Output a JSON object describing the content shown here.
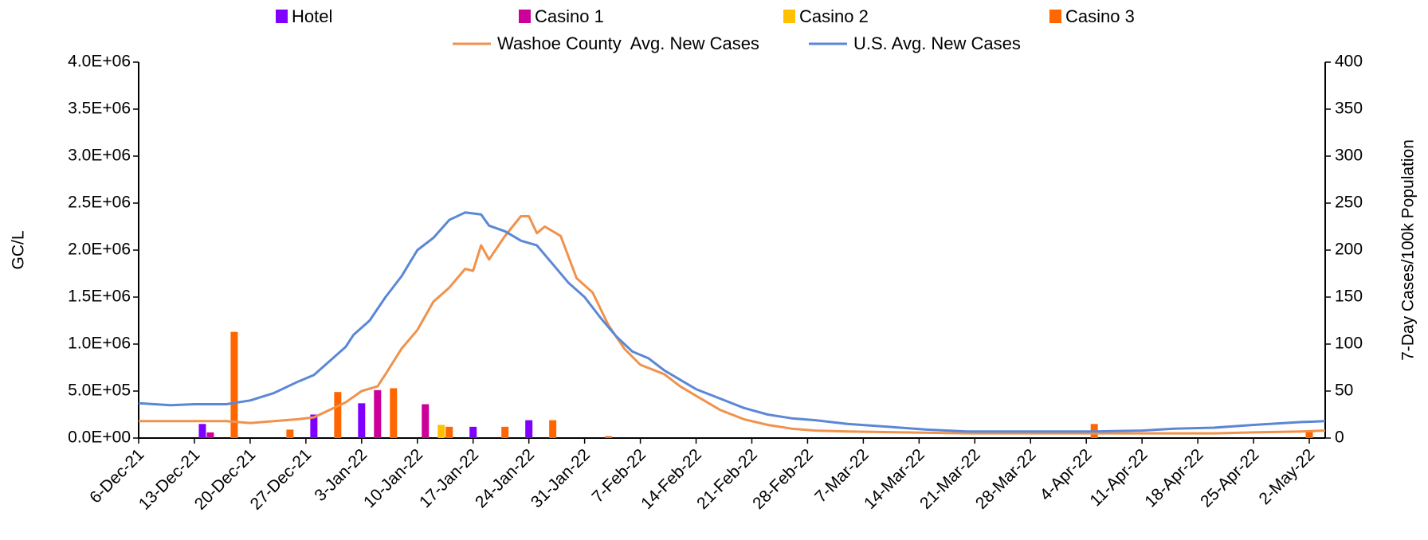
{
  "chart_data": {
    "type": "bar",
    "ylabel": "GC/L",
    "y2label": "7-Day Cases/100k Population",
    "xlim": [
      "2021-12-06",
      "2022-05-04"
    ],
    "xticks": [
      {
        "value": "2021-12-06",
        "label": "6-Dec-21"
      },
      {
        "value": "2021-12-13",
        "label": "13-Dec-21"
      },
      {
        "value": "2021-12-20",
        "label": "20-Dec-21"
      },
      {
        "value": "2021-12-27",
        "label": "27-Dec-21"
      },
      {
        "value": "2022-01-03",
        "label": "3-Jan-22"
      },
      {
        "value": "2022-01-10",
        "label": "10-Jan-22"
      },
      {
        "value": "2022-01-17",
        "label": "17-Jan-22"
      },
      {
        "value": "2022-01-24",
        "label": "24-Jan-22"
      },
      {
        "value": "2022-01-31",
        "label": "31-Jan-22"
      },
      {
        "value": "2022-02-07",
        "label": "7-Feb-22"
      },
      {
        "value": "2022-02-14",
        "label": "14-Feb-22"
      },
      {
        "value": "2022-02-21",
        "label": "21-Feb-22"
      },
      {
        "value": "2022-02-28",
        "label": "28-Feb-22"
      },
      {
        "value": "2022-03-07",
        "label": "7-Mar-22"
      },
      {
        "value": "2022-03-14",
        "label": "14-Mar-22"
      },
      {
        "value": "2022-03-21",
        "label": "21-Mar-22"
      },
      {
        "value": "2022-03-28",
        "label": "28-Mar-22"
      },
      {
        "value": "2022-04-04",
        "label": "4-Apr-22"
      },
      {
        "value": "2022-04-11",
        "label": "11-Apr-22"
      },
      {
        "value": "2022-04-18",
        "label": "18-Apr-22"
      },
      {
        "value": "2022-04-25",
        "label": "25-Apr-22"
      },
      {
        "value": "2022-05-02",
        "label": "2-May-22"
      }
    ],
    "ylim": [
      0,
      4000000
    ],
    "yticks": [
      {
        "value": 0,
        "label": "0.0E+00"
      },
      {
        "value": 500000,
        "label": "5.0E+05"
      },
      {
        "value": 1000000,
        "label": "1.0E+06"
      },
      {
        "value": 1500000,
        "label": "1.5E+06"
      },
      {
        "value": 2000000,
        "label": "2.0E+06"
      },
      {
        "value": 2500000,
        "label": "2.5E+06"
      },
      {
        "value": 3000000,
        "label": "3.0E+06"
      },
      {
        "value": 3500000,
        "label": "3.5E+06"
      },
      {
        "value": 4000000,
        "label": "4.0E+06"
      }
    ],
    "y2lim": [
      0,
      400
    ],
    "y2ticks": [
      0,
      50,
      100,
      150,
      200,
      250,
      300,
      350,
      400
    ],
    "grid": false,
    "legend": "top",
    "series": [
      {
        "name": "Hotel",
        "type": "bar",
        "color": "#7f00ff",
        "x": [
          "2021-12-14",
          "2021-12-28",
          "2022-01-03",
          "2022-01-17",
          "2022-01-24"
        ],
        "values": [
          150000,
          250000,
          370000,
          120000,
          190000
        ]
      },
      {
        "name": "Casino 1",
        "type": "bar",
        "color": "#cc0099",
        "x": [
          "2021-12-15",
          "2022-01-05",
          "2022-01-11"
        ],
        "values": [
          60000,
          510000,
          360000
        ]
      },
      {
        "name": "Casino 2",
        "type": "bar",
        "color": "#ffc000",
        "x": [
          "2022-01-13"
        ],
        "values": [
          140000
        ]
      },
      {
        "name": "Casino 3",
        "type": "bar",
        "color": "#ff6600",
        "x": [
          "2021-12-18",
          "2021-12-25",
          "2021-12-31",
          "2022-01-07",
          "2022-01-14",
          "2022-01-21",
          "2022-01-27",
          "2022-02-03",
          "2022-04-05",
          "2022-05-02"
        ],
        "values": [
          1130000,
          90000,
          490000,
          530000,
          120000,
          120000,
          190000,
          20000,
          150000,
          80000
        ]
      },
      {
        "name": "Washoe County  Avg. New Cases",
        "type": "line",
        "axis": "y2",
        "color": "#f0924c",
        "x": [
          "2021-12-06",
          "2021-12-13",
          "2021-12-17",
          "2021-12-20",
          "2021-12-23",
          "2021-12-26",
          "2021-12-28",
          "2021-12-30",
          "2022-01-01",
          "2022-01-03",
          "2022-01-05",
          "2022-01-06",
          "2022-01-08",
          "2022-01-10",
          "2022-01-12",
          "2022-01-14",
          "2022-01-16",
          "2022-01-17",
          "2022-01-18",
          "2022-01-19",
          "2022-01-21",
          "2022-01-23",
          "2022-01-24",
          "2022-01-25",
          "2022-01-26",
          "2022-01-28",
          "2022-01-30",
          "2022-02-01",
          "2022-02-03",
          "2022-02-05",
          "2022-02-07",
          "2022-02-10",
          "2022-02-12",
          "2022-02-14",
          "2022-02-17",
          "2022-02-20",
          "2022-02-23",
          "2022-02-26",
          "2022-03-01",
          "2022-03-05",
          "2022-03-12",
          "2022-03-20",
          "2022-03-28",
          "2022-04-05",
          "2022-04-12",
          "2022-04-20",
          "2022-04-25",
          "2022-05-01",
          "2022-05-04"
        ],
        "values": [
          18,
          18,
          18,
          16,
          18,
          20,
          22,
          30,
          38,
          50,
          55,
          68,
          95,
          115,
          145,
          160,
          180,
          178,
          205,
          190,
          215,
          236,
          236,
          218,
          225,
          215,
          170,
          155,
          120,
          95,
          78,
          68,
          55,
          45,
          30,
          20,
          14,
          10,
          8,
          7,
          6,
          5,
          5,
          5,
          5,
          5,
          6,
          7,
          8
        ]
      },
      {
        "name": "U.S. Avg. New Cases",
        "type": "line",
        "axis": "y2",
        "color": "#5b87d6",
        "x": [
          "2021-12-06",
          "2021-12-10",
          "2021-12-13",
          "2021-12-17",
          "2021-12-20",
          "2021-12-23",
          "2021-12-26",
          "2021-12-28",
          "2021-12-30",
          "2022-01-01",
          "2022-01-02",
          "2022-01-04",
          "2022-01-06",
          "2022-01-08",
          "2022-01-10",
          "2022-01-12",
          "2022-01-14",
          "2022-01-16",
          "2022-01-18",
          "2022-01-19",
          "2022-01-21",
          "2022-01-23",
          "2022-01-25",
          "2022-01-27",
          "2022-01-29",
          "2022-01-31",
          "2022-02-02",
          "2022-02-04",
          "2022-02-06",
          "2022-02-08",
          "2022-02-10",
          "2022-02-12",
          "2022-02-14",
          "2022-02-17",
          "2022-02-20",
          "2022-02-23",
          "2022-02-26",
          "2022-03-01",
          "2022-03-05",
          "2022-03-10",
          "2022-03-15",
          "2022-03-20",
          "2022-03-28",
          "2022-04-05",
          "2022-04-11",
          "2022-04-15",
          "2022-04-20",
          "2022-04-25",
          "2022-05-01",
          "2022-05-04"
        ],
        "values": [
          37,
          35,
          36,
          36,
          40,
          48,
          60,
          67,
          82,
          97,
          110,
          125,
          150,
          172,
          200,
          213,
          232,
          240,
          238,
          226,
          220,
          210,
          205,
          185,
          165,
          150,
          128,
          108,
          92,
          85,
          72,
          62,
          52,
          42,
          32,
          25,
          21,
          19,
          15,
          12,
          9,
          7,
          7,
          7,
          8,
          10,
          11,
          14,
          17,
          18
        ]
      }
    ]
  }
}
